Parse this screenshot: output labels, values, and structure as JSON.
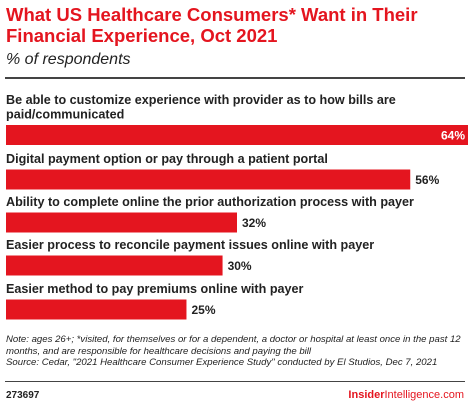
{
  "header": {
    "title": "What US Healthcare Consumers* Want in Their Financial Experience, Oct 2021",
    "subtitle": "% of respondents"
  },
  "colors": {
    "accent": "#e4151f",
    "bar": "#e4151f",
    "text": "#222222"
  },
  "chart_data": {
    "type": "bar",
    "orientation": "horizontal",
    "title": "What US Healthcare Consumers* Want in Their Financial Experience, Oct 2021",
    "subtitle": "% of respondents",
    "categories": [
      "Be able to customize experience with provider as to how bills are paid/communicated",
      "Digital payment option or pay through a patient portal",
      "Ability to complete online the prior authorization process with payer",
      "Easier process to reconcile payment issues online with payer",
      "Easier method to pay premiums online with payer"
    ],
    "values": [
      64,
      56,
      32,
      30,
      25
    ],
    "value_labels": [
      "64%",
      "56%",
      "32%",
      "30%",
      "25%"
    ],
    "unit": "%",
    "xlim": [
      0,
      64
    ],
    "grid": false
  },
  "footer": {
    "note": "Note: ages 26+; *visited, for themselves or for a dependent, a doctor or hospital at least once in the past 12 months, and are responsible for healthcare decisions and paying the bill",
    "source": "Source: Cedar, \"2021 Healthcare Consumer Experience Study\" conducted by El Studios, Dec 7, 2021",
    "chart_id": "273697",
    "brand_bold": "Insider",
    "brand_light": "Intelligence",
    "brand_suffix": ".com"
  }
}
